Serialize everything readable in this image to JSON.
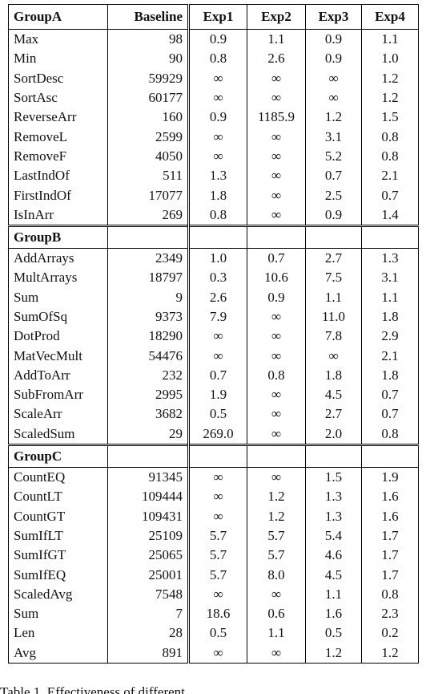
{
  "table": {
    "header": [
      "GroupA",
      "Baseline",
      "Exp1",
      "Exp2",
      "Exp3",
      "Exp4"
    ],
    "groups": [
      {
        "name": "GroupA",
        "rows": [
          [
            "Max",
            "98",
            "0.9",
            "1.1",
            "0.9",
            "1.1"
          ],
          [
            "Min",
            "90",
            "0.8",
            "2.6",
            "0.9",
            "1.0"
          ],
          [
            "SortDesc",
            "59929",
            "∞",
            "∞",
            "∞",
            "1.2"
          ],
          [
            "SortAsc",
            "60177",
            "∞",
            "∞",
            "∞",
            "1.2"
          ],
          [
            "ReverseArr",
            "160",
            "0.9",
            "1185.9",
            "1.2",
            "1.5"
          ],
          [
            "RemoveL",
            "2599",
            "∞",
            "∞",
            "3.1",
            "0.8"
          ],
          [
            "RemoveF",
            "4050",
            "∞",
            "∞",
            "5.2",
            "0.8"
          ],
          [
            "LastIndOf",
            "511",
            "1.3",
            "∞",
            "0.7",
            "2.1"
          ],
          [
            "FirstIndOf",
            "17077",
            "1.8",
            "∞",
            "2.5",
            "0.7"
          ],
          [
            "IsInArr",
            "269",
            "0.8",
            "∞",
            "0.9",
            "1.4"
          ]
        ]
      },
      {
        "name": "GroupB",
        "rows": [
          [
            "AddArrays",
            "2349",
            "1.0",
            "0.7",
            "2.7",
            "1.3"
          ],
          [
            "MultArrays",
            "18797",
            "0.3",
            "10.6",
            "7.5",
            "3.1"
          ],
          [
            "Sum",
            "9",
            "2.6",
            "0.9",
            "1.1",
            "1.1"
          ],
          [
            "SumOfSq",
            "9373",
            "7.9",
            "∞",
            "11.0",
            "1.8"
          ],
          [
            "DotProd",
            "18290",
            "∞",
            "∞",
            "7.8",
            "2.9"
          ],
          [
            "MatVecMult",
            "54476",
            "∞",
            "∞",
            "∞",
            "2.1"
          ],
          [
            "AddToArr",
            "232",
            "0.7",
            "0.8",
            "1.8",
            "1.8"
          ],
          [
            "SubFromArr",
            "2995",
            "1.9",
            "∞",
            "4.5",
            "0.7"
          ],
          [
            "ScaleArr",
            "3682",
            "0.5",
            "∞",
            "2.7",
            "0.7"
          ],
          [
            "ScaledSum",
            "29",
            "269.0",
            "∞",
            "2.0",
            "0.8"
          ]
        ]
      },
      {
        "name": "GroupC",
        "rows": [
          [
            "CountEQ",
            "91345",
            "∞",
            "∞",
            "1.5",
            "1.9"
          ],
          [
            "CountLT",
            "109444",
            "∞",
            "1.2",
            "1.3",
            "1.6"
          ],
          [
            "CountGT",
            "109431",
            "∞",
            "1.2",
            "1.3",
            "1.6"
          ],
          [
            "SumIfLT",
            "25109",
            "5.7",
            "5.7",
            "5.4",
            "1.7"
          ],
          [
            "SumIfGT",
            "25065",
            "5.7",
            "5.7",
            "4.6",
            "1.7"
          ],
          [
            "SumIfEQ",
            "25001",
            "5.7",
            "8.0",
            "4.5",
            "1.7"
          ],
          [
            "ScaledAvg",
            "7548",
            "∞",
            "∞",
            "1.1",
            "0.8"
          ],
          [
            "Sum",
            "7",
            "18.6",
            "0.6",
            "1.6",
            "2.3"
          ],
          [
            "Len",
            "28",
            "0.5",
            "1.1",
            "0.5",
            "0.2"
          ],
          [
            "Avg",
            "891",
            "∞",
            "∞",
            "1.2",
            "1.2"
          ]
        ]
      }
    ],
    "caption": "Table 1. Effectiveness of different"
  }
}
